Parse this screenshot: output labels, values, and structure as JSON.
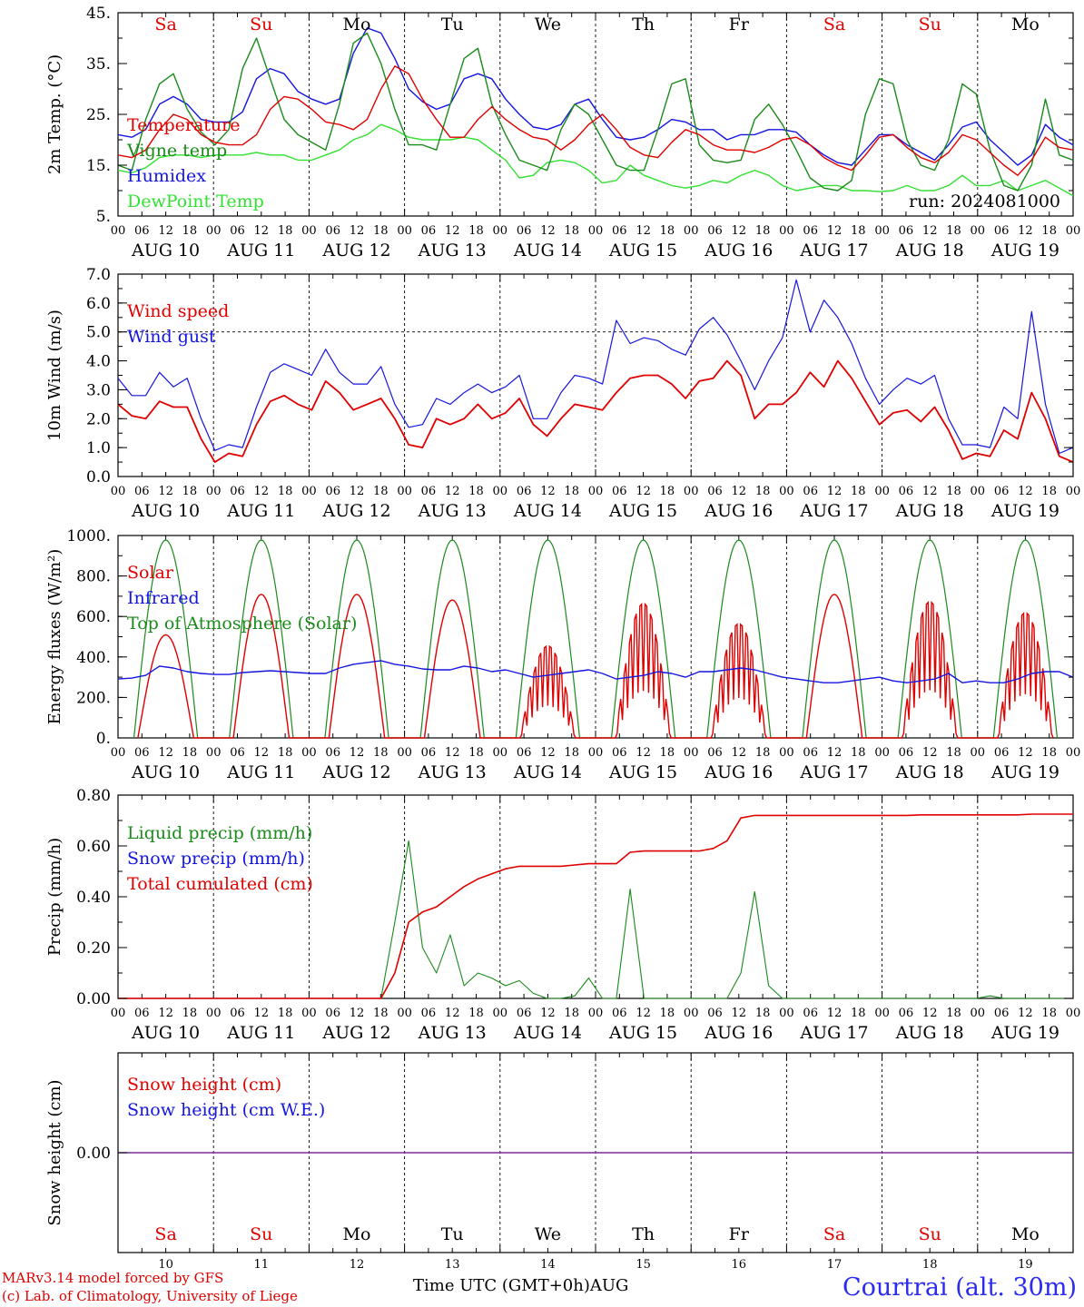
{
  "days": {
    "weekdays": [
      "Sa",
      "Su",
      "Mo",
      "Tu",
      "We",
      "Th",
      "Fr",
      "Sa",
      "Su",
      "Mo"
    ],
    "weekend_flags": [
      true,
      true,
      false,
      false,
      false,
      false,
      false,
      true,
      true,
      false
    ],
    "dates": [
      "AUG 10",
      "AUG 11",
      "AUG 12",
      "AUG 13",
      "AUG 14",
      "AUG 15",
      "AUG 16",
      "AUG 17",
      "AUG 18",
      "AUG 19"
    ],
    "day_numbers": [
      "10",
      "11",
      "12",
      "13",
      "14",
      "15",
      "16",
      "17",
      "18",
      "19"
    ],
    "hour_ticks": [
      "00",
      "06",
      "12",
      "18"
    ],
    "last_tick": "00"
  },
  "colors": {
    "red": "#e00000",
    "green": "#1a8a1a",
    "blue": "#1515e0",
    "light_green": "#33e033",
    "purple": "#7a2a9a"
  },
  "chart_data": [
    {
      "id": "temp",
      "type": "line",
      "ylabel": "2m Temp. (°C)",
      "ylim": [
        5,
        45
      ],
      "yticks": [
        "5.",
        "15.",
        "25.",
        "35.",
        "45."
      ],
      "legend_position": "top-left",
      "annotation": "run: 2024081000",
      "series": [
        {
          "name": "Temperature",
          "color": "red",
          "values": [
            17,
            16.5,
            18,
            22,
            25,
            24,
            21,
            19.5,
            19,
            19,
            21,
            26,
            28.5,
            28,
            26,
            23.5,
            23,
            22,
            24,
            30,
            34.5,
            33,
            28,
            24,
            20.5,
            20.5,
            24,
            26.5,
            24,
            22,
            20.5,
            20,
            18,
            20,
            23,
            25,
            22,
            18.5,
            17,
            16.5,
            19.5,
            22,
            21,
            19,
            18,
            18,
            17.5,
            18.5,
            20,
            20.5,
            19,
            16.5,
            15,
            14,
            17,
            20.5,
            21,
            18.5,
            16.5,
            15.5,
            17.5,
            21,
            20,
            17.5,
            15,
            13,
            16,
            20.5,
            18.5,
            18
          ]
        },
        {
          "name": "Vigne temp",
          "color": "green",
          "values": [
            15,
            14,
            24,
            31,
            33,
            26,
            21.5,
            19,
            22,
            34,
            40,
            32,
            24,
            21,
            19.5,
            18,
            27,
            39,
            41,
            35,
            26,
            19,
            19,
            18,
            27,
            36,
            38,
            27,
            21,
            16,
            15,
            14,
            22,
            27,
            25,
            20,
            15,
            14,
            14,
            22,
            31,
            32,
            19,
            16,
            15.5,
            16,
            24,
            27,
            23,
            18,
            12.5,
            10.5,
            10,
            12,
            25,
            32,
            31,
            20,
            15,
            14,
            20,
            31,
            29,
            18,
            11,
            10,
            15,
            28,
            17,
            16
          ]
        },
        {
          "name": "Humidex",
          "color": "blue",
          "values": [
            21,
            20.5,
            22,
            27,
            28.5,
            27,
            24,
            23.5,
            23.5,
            25.5,
            32,
            34,
            33,
            29.5,
            28,
            27,
            28,
            37,
            42,
            41,
            36,
            30,
            27.5,
            26,
            27,
            32,
            33,
            32,
            28,
            25,
            22.5,
            22,
            23,
            27,
            28,
            24,
            20.5,
            20,
            20.5,
            22,
            24,
            23.5,
            22,
            22,
            20,
            21,
            21,
            22,
            22,
            21.5,
            19,
            17,
            15.5,
            15,
            18,
            21,
            21,
            19,
            17.5,
            16,
            19,
            22.5,
            23.5,
            20,
            17.5,
            15,
            17,
            23,
            20.5,
            19
          ]
        },
        {
          "name": "DewPoint Temp",
          "color": "light_green",
          "values": [
            14,
            13.5,
            14.5,
            16.5,
            17,
            17,
            16.5,
            17,
            17,
            17,
            17.5,
            17,
            17,
            16,
            16,
            17,
            18,
            20,
            21,
            23,
            22,
            20.5,
            20,
            20,
            20,
            20.5,
            20,
            18,
            16,
            12.5,
            13,
            15.5,
            16,
            15.5,
            14,
            11.5,
            12,
            15,
            13,
            12,
            11,
            10.5,
            11,
            12,
            11.5,
            13,
            14,
            13,
            11,
            10,
            10.5,
            11,
            11,
            10,
            10,
            9.8,
            10,
            11,
            10,
            10,
            11,
            13,
            11,
            11,
            12,
            10,
            11,
            12,
            10.5,
            9
          ]
        }
      ]
    },
    {
      "id": "wind",
      "type": "line",
      "ylabel": "10m Wind (m/s)",
      "ylim": [
        0,
        7
      ],
      "yticks": [
        "0.0",
        "1.0",
        "2.0",
        "3.0",
        "4.0",
        "5.0",
        "6.0",
        "7.0"
      ],
      "reference_line": 5,
      "legend_position": "top-left",
      "series": [
        {
          "name": "Wind speed",
          "color": "red",
          "values": [
            2.5,
            2.1,
            2.0,
            2.6,
            2.4,
            2.4,
            1.3,
            0.5,
            0.8,
            0.7,
            1.8,
            2.6,
            2.8,
            2.5,
            2.3,
            3.3,
            2.9,
            2.3,
            2.5,
            2.7,
            2.0,
            1.1,
            1.0,
            2.0,
            1.8,
            2.0,
            2.5,
            2.0,
            2.2,
            2.7,
            1.8,
            1.4,
            2.0,
            2.5,
            2.4,
            2.3,
            2.9,
            3.4,
            3.5,
            3.5,
            3.2,
            2.7,
            3.3,
            3.4,
            4.0,
            3.5,
            2.0,
            2.5,
            2.5,
            2.9,
            3.6,
            3.1,
            4.0,
            3.4,
            2.6,
            1.8,
            2.2,
            2.3,
            1.9,
            2.4,
            1.6,
            0.6,
            0.8,
            0.7,
            1.6,
            1.3,
            2.9,
            2.0,
            0.7,
            0.5
          ]
        },
        {
          "name": "Wind gust",
          "color": "blue",
          "values": [
            3.4,
            2.8,
            2.8,
            3.6,
            3.1,
            3.4,
            2.0,
            0.9,
            1.1,
            1.0,
            2.4,
            3.6,
            3.9,
            3.7,
            3.5,
            4.4,
            3.6,
            3.2,
            3.2,
            3.8,
            2.5,
            1.7,
            1.8,
            2.7,
            2.5,
            2.9,
            3.2,
            2.9,
            3.1,
            3.5,
            2.0,
            2.0,
            2.9,
            3.5,
            3.4,
            3.2,
            5.4,
            4.6,
            4.8,
            4.7,
            4.4,
            4.2,
            5.1,
            5.5,
            4.9,
            4.0,
            3.0,
            4.0,
            4.8,
            6.8,
            5.0,
            6.1,
            5.5,
            4.6,
            3.4,
            2.5,
            3.0,
            3.4,
            3.2,
            3.5,
            2.0,
            1.1,
            1.1,
            1.0,
            2.4,
            2.0,
            5.7,
            2.5,
            0.8,
            1.0
          ]
        }
      ]
    },
    {
      "id": "energy",
      "type": "line",
      "ylabel": "Energy fluxes (W/m²)",
      "ylim": [
        0,
        1100
      ],
      "yticks": [
        "0.",
        "200.",
        "400.",
        "600.",
        "800.",
        "1000."
      ],
      "legend_position": "top-left",
      "series": [
        {
          "name": "Solar",
          "color": "red",
          "peaks": [
            560,
            780,
            780,
            750,
            500,
            730,
            620,
            780,
            740,
            680
          ]
        },
        {
          "name": "Infrared",
          "color": "blue",
          "values": [
            320,
            325,
            340,
            390,
            380,
            360,
            350,
            345,
            345,
            355,
            360,
            365,
            360,
            355,
            350,
            350,
            380,
            400,
            410,
            420,
            400,
            390,
            375,
            370,
            370,
            390,
            380,
            360,
            370,
            350,
            330,
            340,
            350,
            360,
            370,
            350,
            320,
            330,
            340,
            360,
            350,
            330,
            360,
            360,
            370,
            380,
            370,
            350,
            330,
            320,
            310,
            300,
            300,
            310,
            320,
            330,
            310,
            300,
            310,
            320,
            350,
            300,
            310,
            300,
            300,
            320,
            350,
            360,
            360,
            330
          ]
        },
        {
          "name": "Top of Atmosphere (Solar)",
          "color": "green",
          "peak": 1075
        }
      ]
    },
    {
      "id": "precip",
      "type": "line",
      "ylabel": "Precip (mm/h)",
      "ylim": [
        0,
        0.8
      ],
      "yticks": [
        "0.00",
        "0.20",
        "0.40",
        "0.60",
        "0.80"
      ],
      "legend_position": "top-left",
      "series": [
        {
          "name": "Liquid precip (mm/h)",
          "color": "green",
          "values": [
            0,
            0,
            0,
            0,
            0,
            0,
            0,
            0,
            0,
            0,
            0,
            0,
            0,
            0,
            0,
            0,
            0,
            0,
            0,
            0,
            0.3,
            0.62,
            0.2,
            0.1,
            0.25,
            0.05,
            0.1,
            0.08,
            0.05,
            0.07,
            0.02,
            0,
            0,
            0.01,
            0.08,
            0,
            0,
            0.43,
            0,
            0,
            0,
            0,
            0,
            0,
            0,
            0.1,
            0.42,
            0.05,
            0,
            0,
            0,
            0,
            0,
            0,
            0,
            0,
            0,
            0,
            0,
            0,
            0,
            0,
            0,
            0.01,
            0,
            0,
            0,
            0,
            0,
            0
          ]
        },
        {
          "name": "Snow precip (mm/h)",
          "color": "blue",
          "values": []
        },
        {
          "name": "Total cumulated (cm)",
          "color": "red",
          "values": [
            0,
            0,
            0,
            0,
            0,
            0,
            0,
            0,
            0,
            0,
            0,
            0,
            0,
            0,
            0,
            0,
            0,
            0,
            0,
            0,
            0.1,
            0.3,
            0.34,
            0.36,
            0.4,
            0.44,
            0.47,
            0.49,
            0.51,
            0.52,
            0.52,
            0.52,
            0.52,
            0.525,
            0.53,
            0.53,
            0.53,
            0.575,
            0.58,
            0.58,
            0.58,
            0.58,
            0.58,
            0.59,
            0.62,
            0.71,
            0.72,
            0.72,
            0.72,
            0.72,
            0.72,
            0.72,
            0.72,
            0.72,
            0.72,
            0.72,
            0.72,
            0.72,
            0.722,
            0.722,
            0.722,
            0.722,
            0.722,
            0.722,
            0.722,
            0.722,
            0.725,
            0.725,
            0.725,
            0.725
          ]
        }
      ]
    },
    {
      "id": "snow",
      "type": "line",
      "ylabel": "Snow height (cm)",
      "yticks": [
        "0.00"
      ],
      "legend_position": "top-left",
      "series": [
        {
          "name": "Snow height (cm)",
          "color": "red",
          "values": [
            0,
            0
          ]
        },
        {
          "name": "Snow height (cm W.E.)",
          "color": "blue",
          "values": [
            0,
            0
          ]
        }
      ]
    }
  ],
  "footer": {
    "credit_line1": "MARv3.14 model forced by GFS",
    "credit_line2": "(c) Lab. of Climatology, University of Liege",
    "axis_title": "Time UTC (GMT+0h)",
    "month": "AUG",
    "station": "Courtrai (alt. 30m)"
  }
}
